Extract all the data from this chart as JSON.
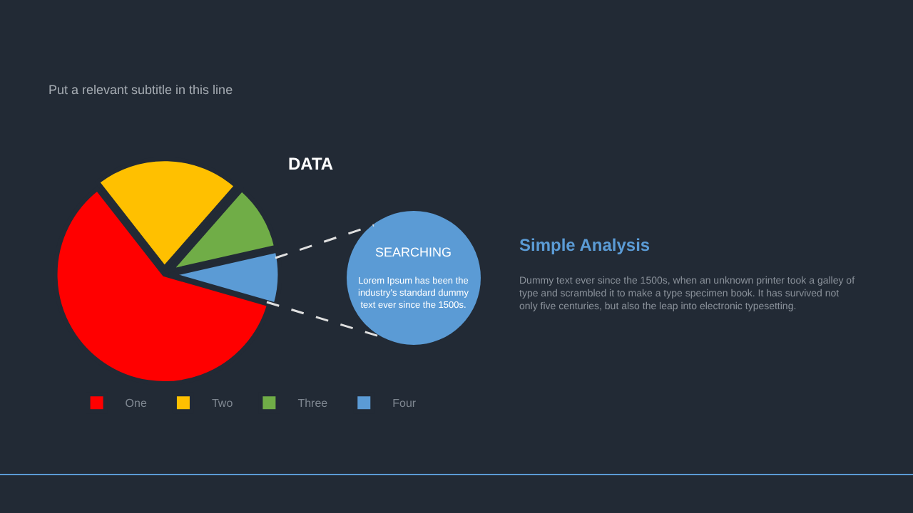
{
  "chart_data": {
    "type": "pie",
    "title": "DATA",
    "subtitle": "Put a relevant subtitle in this line",
    "categories": [
      "One",
      "Two",
      "Three",
      "Four"
    ],
    "values": [
      60,
      22,
      10,
      8
    ],
    "colors": [
      "#ff0000",
      "#ffc000",
      "#70ad47",
      "#5b9bd5"
    ],
    "legend": "bottom",
    "annotations": [
      "SEARCHING",
      "Lorem Ipsum has been the industry's standard dummy text ever since the 1500s.",
      "Simple Analysis",
      "Dummy text ever since the 1500s, when an unknown printer took a galley of type and scrambled it to make a type specimen book. It has survived not only five centuries, but also the leap into electronic typesetting."
    ]
  }
}
